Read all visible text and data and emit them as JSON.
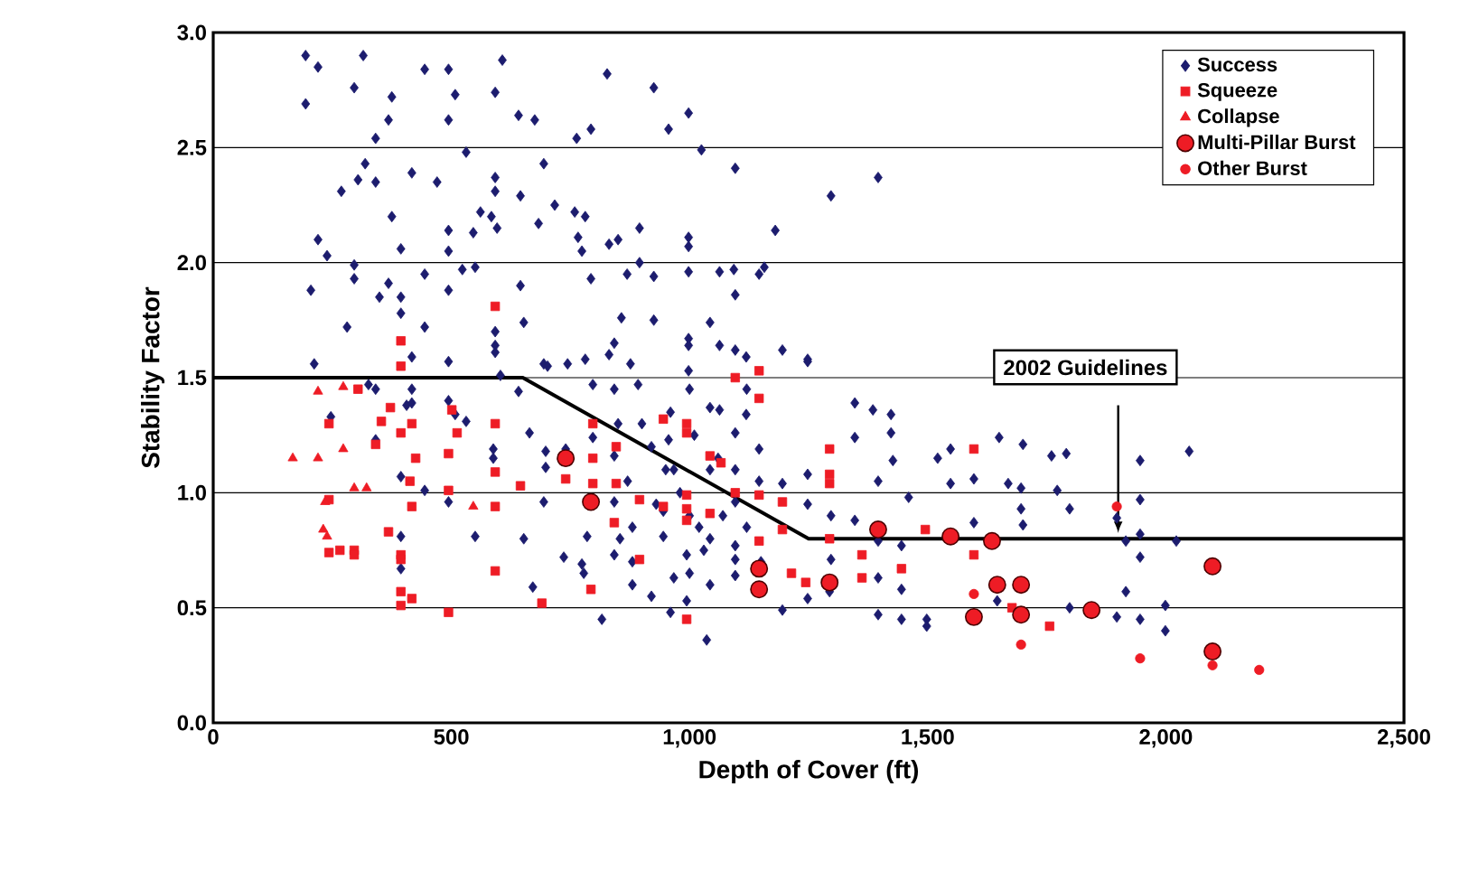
{
  "chart_data": {
    "type": "scatter",
    "xlabel": "Depth of Cover (ft)",
    "ylabel": "Stability Factor",
    "xlim": [
      0,
      2500
    ],
    "ylim": [
      0,
      3
    ],
    "xticks": [
      0,
      500,
      {
        "value": 1000,
        "label": "1,000"
      },
      {
        "value": 1500,
        "label": "1,500"
      },
      {
        "value": 2000,
        "label": "2,000"
      },
      {
        "value": 2500,
        "label": "2,500"
      }
    ],
    "yticks": [
      {
        "value": 0,
        "label": "0.0"
      },
      {
        "value": 0.5,
        "label": "0.5"
      },
      {
        "value": 1,
        "label": "1.0"
      },
      {
        "value": 1.5,
        "label": "1.5"
      },
      {
        "value": 2,
        "label": "2.0"
      },
      {
        "value": 2.5,
        "label": "2.5"
      },
      {
        "value": 3,
        "label": "3.0"
      }
    ],
    "grid": "y",
    "legend": "top right",
    "annotations": [
      "2002 Guidelines"
    ],
    "series": [
      {
        "name": "Success",
        "color": "#1c1c6e",
        "marker": "diamond",
        "x": [
          194,
          220,
          315,
          194,
          296,
          375,
          444,
          494,
          508,
          607,
          592,
          368,
          494,
          641,
          675,
          827,
          793,
          763,
          341,
          531,
          319,
          304,
          269,
          341,
          417,
          470,
          592,
          592,
          645,
          694,
          717,
          561,
          584,
          596,
          683,
          759,
          781,
          375,
          494,
          546,
          766,
          774,
          831,
          850,
          895,
          220,
          239,
          394,
          494,
          523,
          550,
          296,
          296,
          444,
          205,
          368,
          349,
          394,
          494,
          645,
          793,
          869,
          895,
          394,
          281,
          444,
          652,
          592,
          592,
          592,
          857,
          842,
          831,
          876,
          212,
          494,
          694,
          744,
          781,
          417,
          925,
          956,
          998,
          1025,
          1096,
          1297,
          1396,
          1180,
          998,
          998,
          925,
          998,
          1063,
          1093,
          1146,
          1157,
          1096,
          925,
          1043,
          998,
          998,
          1063,
          1096,
          1119,
          1195,
          1248,
          998,
          247,
          341,
          394,
          444,
          494,
          550,
          394,
          394,
          652,
          671,
          736,
          774,
          785,
          816,
          778,
          406,
          417,
          494,
          508,
          531,
          588,
          588,
          664,
          698,
          698,
          740,
          797,
          694,
          842,
          842,
          854,
          842,
          880,
          880,
          892,
          842,
          797,
          702,
          603,
          641,
          417,
          341,
          326,
          1347,
          1385,
          1423,
          1347,
          1423,
          1427,
          1521,
          1548,
          1650,
          1700,
          1760,
          1791,
          1396,
          1460,
          1548,
          1597,
          1669,
          1696,
          1772,
          1798,
          1696,
          1700,
          1597,
          1347,
          1297,
          1248,
          1248,
          1195,
          1146,
          1146,
          1096,
          1096,
          1043,
          1096,
          1096,
          1096,
          1043,
          1396,
          1445,
          1396,
          1445,
          1297,
          1294,
          1248,
          1195,
          1396,
          1445,
          1498,
          1498,
          1646,
          1798,
          1036,
          994,
          967,
          994,
          945,
          945,
          1043,
          967,
          1043,
          1063,
          1119,
          956,
          1096,
          1248,
          1946,
          2049,
          1946,
          1916,
          1946,
          2022,
          1946,
          1916,
          1999,
          1897,
          1946,
          1999,
          1897,
          900,
          920,
          950,
          980,
          1000,
          1020,
          930,
          870,
          960,
          1010,
          1060,
          1070,
          880,
          920,
          960,
          1000,
          1030,
          1120,
          1150,
          850,
          1000,
          1120
        ],
        "values": [
          2.9,
          2.85,
          2.9,
          2.69,
          2.76,
          2.72,
          2.84,
          2.84,
          2.73,
          2.88,
          2.74,
          2.62,
          2.62,
          2.64,
          2.62,
          2.82,
          2.58,
          2.54,
          2.54,
          2.48,
          2.43,
          2.36,
          2.31,
          2.35,
          2.39,
          2.35,
          2.37,
          2.31,
          2.29,
          2.43,
          2.25,
          2.22,
          2.2,
          2.15,
          2.17,
          2.22,
          2.2,
          2.2,
          2.14,
          2.13,
          2.11,
          2.05,
          2.08,
          2.1,
          2.15,
          2.1,
          2.03,
          2.06,
          2.05,
          1.97,
          1.98,
          1.99,
          1.93,
          1.95,
          1.88,
          1.91,
          1.85,
          1.85,
          1.88,
          1.9,
          1.93,
          1.95,
          2.0,
          1.78,
          1.72,
          1.72,
          1.74,
          1.7,
          1.64,
          1.61,
          1.76,
          1.65,
          1.6,
          1.56,
          1.56,
          1.57,
          1.56,
          1.56,
          1.58,
          1.59,
          2.76,
          2.58,
          2.65,
          2.49,
          2.41,
          2.29,
          2.37,
          2.14,
          2.11,
          2.07,
          1.94,
          1.96,
          1.96,
          1.97,
          1.95,
          1.98,
          1.86,
          1.75,
          1.74,
          1.67,
          1.64,
          1.64,
          1.62,
          1.59,
          1.62,
          1.58,
          1.53,
          1.33,
          1.23,
          1.07,
          1.01,
          0.96,
          0.81,
          0.81,
          0.67,
          0.8,
          0.59,
          0.72,
          0.69,
          0.81,
          0.45,
          0.65,
          1.38,
          1.39,
          1.4,
          1.34,
          1.31,
          1.19,
          1.15,
          1.26,
          1.18,
          1.11,
          1.19,
          1.24,
          0.96,
          1.16,
          0.96,
          0.8,
          0.73,
          0.6,
          0.85,
          1.47,
          1.45,
          1.47,
          1.55,
          1.51,
          1.44,
          1.45,
          1.45,
          1.47,
          1.39,
          1.36,
          1.34,
          1.24,
          1.26,
          1.14,
          1.15,
          1.19,
          1.24,
          1.21,
          1.16,
          1.17,
          1.05,
          0.98,
          1.04,
          1.06,
          1.04,
          1.02,
          1.01,
          0.93,
          0.93,
          0.86,
          0.87,
          0.88,
          0.9,
          0.95,
          1.08,
          1.04,
          1.05,
          1.19,
          1.1,
          0.96,
          0.8,
          0.77,
          0.71,
          0.64,
          0.6,
          0.79,
          0.77,
          0.63,
          0.58,
          0.71,
          0.57,
          0.54,
          0.49,
          0.47,
          0.45,
          0.45,
          0.42,
          0.53,
          0.5,
          0.36,
          0.53,
          0.63,
          0.73,
          0.81,
          0.92,
          1.1,
          1.1,
          1.37,
          1.36,
          1.34,
          1.23,
          1.26,
          1.57,
          1.14,
          1.18,
          0.97,
          0.79,
          0.82,
          0.79,
          0.72,
          0.57,
          0.51,
          0.46,
          0.45,
          0.4,
          0.89,
          1.3,
          1.2,
          1.1,
          1.0,
          0.9,
          0.85,
          0.95,
          1.05,
          1.35,
          1.25,
          1.15,
          0.9,
          0.7,
          0.55,
          0.48,
          0.65,
          0.75,
          0.85,
          0.7,
          1.3,
          1.45,
          1.45
        ]
      },
      {
        "name": "Squeeze",
        "color": "#ee1c25",
        "marker": "square",
        "x": [
          394,
          592,
          304,
          243,
          372,
          353,
          394,
          417,
          341,
          425,
          494,
          501,
          512,
          592,
          592,
          413,
          494,
          417,
          592,
          645,
          740,
          797,
          797,
          797,
          846,
          846,
          842,
          895,
          895,
          368,
          394,
          394,
          243,
          243,
          266,
          296,
          296,
          592,
          394,
          417,
          394,
          494,
          690,
          793,
          1096,
          1146,
          1146,
          945,
          994,
          994,
          1043,
          1066,
          1096,
          1146,
          994,
          945,
          994,
          1043,
          994,
          1195,
          1195,
          1146,
          1294,
          1294,
          1294,
          1294,
          1362,
          1362,
          1445,
          1214,
          1244,
          1495,
          1597,
          1597,
          994,
          1677,
          1756,
          394
        ],
        "values": [
          1.66,
          1.81,
          1.45,
          1.3,
          1.37,
          1.31,
          1.26,
          1.3,
          1.21,
          1.15,
          1.17,
          1.36,
          1.26,
          1.3,
          1.09,
          1.05,
          1.01,
          0.94,
          0.94,
          1.03,
          1.06,
          1.3,
          1.15,
          1.04,
          1.2,
          1.04,
          0.87,
          0.97,
          0.71,
          0.83,
          0.73,
          0.71,
          0.97,
          0.74,
          0.75,
          0.75,
          0.73,
          0.66,
          0.57,
          0.54,
          0.51,
          0.48,
          0.52,
          0.58,
          1.5,
          1.53,
          1.41,
          1.32,
          1.3,
          1.26,
          1.16,
          1.13,
          1.0,
          0.99,
          0.99,
          0.94,
          0.93,
          0.91,
          0.88,
          0.96,
          0.84,
          0.79,
          1.19,
          1.08,
          1.04,
          0.8,
          0.73,
          0.63,
          0.67,
          0.65,
          0.61,
          0.84,
          1.19,
          0.73,
          0.45,
          0.5,
          0.42,
          1.55
        ]
      },
      {
        "name": "Collapse",
        "color": "#ee1c25",
        "marker": "triangle",
        "x": [
          220,
          273,
          167,
          220,
          273,
          296,
          322,
          235,
          231,
          239,
          546
        ],
        "values": [
          1.44,
          1.46,
          1.15,
          1.15,
          1.19,
          1.02,
          1.02,
          0.96,
          0.84,
          0.81,
          0.94
        ]
      },
      {
        "name": "Multi-Pillar Burst",
        "color": "#ee1c25",
        "marker": "circle",
        "x": [
          740,
          793,
          1146,
          1146,
          1294,
          1396,
          1548,
          1635,
          1646,
          1696,
          1597,
          1696,
          1844,
          2098,
          2098
        ],
        "values": [
          1.15,
          0.96,
          0.67,
          0.58,
          0.61,
          0.84,
          0.81,
          0.79,
          0.6,
          0.6,
          0.46,
          0.47,
          0.49,
          0.68,
          0.31
        ]
      },
      {
        "name": "Other Burst",
        "color": "#ee1c25",
        "marker": "circle",
        "x": [
          1696,
          1597,
          1946,
          2098,
          2196,
          1897
        ],
        "values": [
          0.34,
          0.56,
          0.28,
          0.25,
          0.23,
          0.94
        ]
      },
      {
        "type": "line",
        "color": "#000000",
        "marker": "none",
        "line_style": "solid",
        "x": [
          0,
          650,
          1250,
          2500
        ],
        "values": [
          1.5,
          1.5,
          0.8,
          0.8
        ]
      }
    ]
  }
}
